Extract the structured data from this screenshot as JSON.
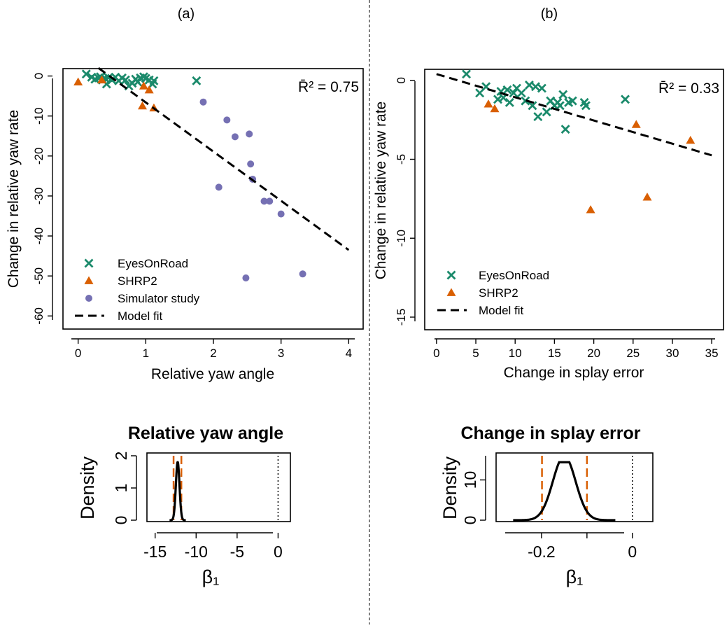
{
  "panel_labels": [
    "(a)",
    "(b)"
  ],
  "colors": {
    "EyesOnRoad": "#1b8a6b",
    "SHRP2": "#d95f02",
    "Simulator study": "#7570b3",
    "fit": "#000000",
    "ci": "#d95f02"
  },
  "chart_data": [
    {
      "id": "a",
      "type": "scatter",
      "r2_label": "R̄² = 0.75",
      "xlabel": "Relative yaw angle",
      "ylabel": "Change in relative yaw rate",
      "xlim": [
        -0.1,
        4.1
      ],
      "ylim": [
        -61,
        1.5
      ],
      "xticks": [
        0,
        1,
        2,
        3,
        4
      ],
      "yticks": [
        0,
        -10,
        -20,
        -30,
        -40,
        -50,
        -60
      ],
      "legend": [
        "EyesOnRoad",
        "SHRP2",
        "Simulator study",
        "Model fit"
      ],
      "legend_position": "bottom-left",
      "fit": {
        "x": [
          0.3,
          4.0
        ],
        "y": [
          2.0,
          -43.5
        ]
      },
      "series": [
        {
          "name": "EyesOnRoad",
          "marker": "x",
          "points": [
            [
              0.12,
              0.5
            ],
            [
              0.2,
              -0.3
            ],
            [
              0.25,
              -0.8
            ],
            [
              0.3,
              -0.5
            ],
            [
              0.33,
              -0.2
            ],
            [
              0.36,
              -1.0
            ],
            [
              0.4,
              -0.6
            ],
            [
              0.42,
              -2.0
            ],
            [
              0.45,
              -0.4
            ],
            [
              0.5,
              -1.0
            ],
            [
              0.55,
              -0.3
            ],
            [
              0.6,
              -1.2
            ],
            [
              0.65,
              -0.5
            ],
            [
              0.7,
              -1.0
            ],
            [
              0.75,
              -2.5
            ],
            [
              0.8,
              -1.8
            ],
            [
              0.85,
              -0.8
            ],
            [
              0.88,
              -1.5
            ],
            [
              0.92,
              -0.5
            ],
            [
              0.97,
              -0.2
            ],
            [
              1.0,
              -0.6
            ],
            [
              1.05,
              -1.0
            ],
            [
              1.1,
              -2.0
            ],
            [
              1.12,
              -1.2
            ],
            [
              1.75,
              -1.2
            ]
          ]
        },
        {
          "name": "SHRP2",
          "marker": "triangle",
          "points": [
            [
              0.0,
              -1.5
            ],
            [
              0.35,
              -1.0
            ],
            [
              0.95,
              -7.5
            ],
            [
              0.97,
              -2.5
            ],
            [
              1.05,
              -3.5
            ],
            [
              1.12,
              -8.0
            ]
          ]
        },
        {
          "name": "Simulator study",
          "marker": "circle",
          "points": [
            [
              1.85,
              -6.5
            ],
            [
              2.08,
              -27.8
            ],
            [
              2.2,
              -11.0
            ],
            [
              2.32,
              -15.2
            ],
            [
              2.48,
              -50.5
            ],
            [
              2.53,
              -14.5
            ],
            [
              2.55,
              -22.0
            ],
            [
              2.58,
              -25.8
            ],
            [
              2.75,
              -31.3
            ],
            [
              2.83,
              -31.3
            ],
            [
              3.0,
              -34.5
            ],
            [
              3.32,
              -49.5
            ]
          ]
        }
      ]
    },
    {
      "id": "b",
      "type": "scatter",
      "r2_label": "R̄² = 0.33",
      "xlabel": "Change in splay error",
      "ylabel": "Change in relative yaw rate",
      "xlim": [
        -1.5,
        36.5
      ],
      "ylim": [
        -15.8,
        0.7
      ],
      "xticks": [
        0,
        5,
        10,
        15,
        20,
        25,
        30,
        35
      ],
      "yticks": [
        0,
        -5,
        -10,
        -15
      ],
      "legend": [
        "EyesOnRoad",
        "SHRP2",
        "Model fit"
      ],
      "legend_position": "bottom-left",
      "fit": {
        "x": [
          0,
          35
        ],
        "y": [
          0.4,
          -4.75
        ]
      },
      "series": [
        {
          "name": "EyesOnRoad",
          "marker": "x",
          "points": [
            [
              3.8,
              0.4
            ],
            [
              5.5,
              -0.8
            ],
            [
              6.3,
              -0.4
            ],
            [
              7.8,
              -1.2
            ],
            [
              8.2,
              -0.7
            ],
            [
              8.5,
              -1.1
            ],
            [
              9.0,
              -0.6
            ],
            [
              9.3,
              -1.4
            ],
            [
              9.8,
              -0.8
            ],
            [
              10.2,
              -0.5
            ],
            [
              10.8,
              -0.8
            ],
            [
              11.3,
              -1.3
            ],
            [
              11.8,
              -0.3
            ],
            [
              12.2,
              -1.6
            ],
            [
              12.6,
              -0.4
            ],
            [
              12.9,
              -2.3
            ],
            [
              13.4,
              -0.5
            ],
            [
              14.0,
              -2.0
            ],
            [
              14.5,
              -1.3
            ],
            [
              15.0,
              -1.6
            ],
            [
              15.4,
              -1.4
            ],
            [
              15.7,
              -1.6
            ],
            [
              16.1,
              -0.9
            ],
            [
              16.4,
              -3.1
            ],
            [
              16.8,
              -1.4
            ],
            [
              17.3,
              -1.3
            ],
            [
              18.8,
              -1.4
            ],
            [
              19.0,
              -1.6
            ],
            [
              24.0,
              -1.2
            ]
          ]
        },
        {
          "name": "SHRP2",
          "marker": "triangle",
          "points": [
            [
              6.6,
              -1.5
            ],
            [
              7.4,
              -1.8
            ],
            [
              19.6,
              -8.2
            ],
            [
              25.4,
              -2.8
            ],
            [
              26.8,
              -7.4
            ],
            [
              32.3,
              -3.8
            ]
          ]
        }
      ]
    },
    {
      "id": "a-density",
      "type": "line",
      "title": "Relative yaw angle",
      "xlabel": "β₁",
      "ylabel": "Density",
      "xlim": [
        -16,
        1.5
      ],
      "ylim": [
        0,
        2
      ],
      "xticks": [
        -15,
        -10,
        -5,
        0
      ],
      "yticks": [
        0,
        1,
        2
      ],
      "density": {
        "mean": -12.25,
        "sd": 0.22
      },
      "ci_lines": [
        -12.75,
        -11.8
      ],
      "zero_line": 0
    },
    {
      "id": "b-density",
      "type": "line",
      "title": "Change in splay error",
      "xlabel": "β₁",
      "ylabel": "Density",
      "xlim": [
        -0.3,
        0.045
      ],
      "ylim": [
        0,
        16
      ],
      "xticks": [
        -0.2,
        -0.1,
        0
      ],
      "xtick_labels": [
        "-0.2",
        "",
        "0"
      ],
      "yticks": [
        0,
        10
      ],
      "density": {
        "mean": -0.15,
        "sd": 0.025
      },
      "ci_lines": [
        -0.199,
        -0.1
      ],
      "zero_line": 0
    }
  ]
}
